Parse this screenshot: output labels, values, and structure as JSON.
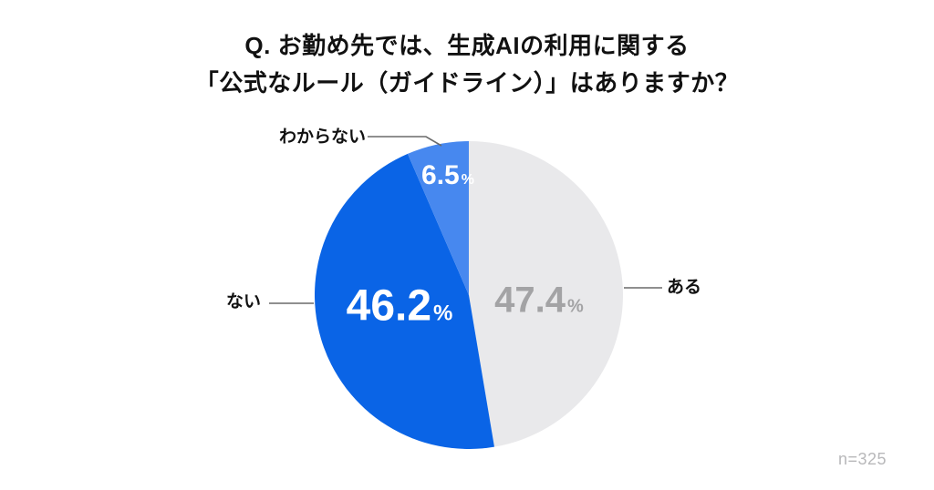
{
  "title": {
    "line1": "Q. お勤め先では、生成AIの利用に関する",
    "line2": "「公式なルール（ガイドライン）」はありますか？"
  },
  "sample_size": "n=325",
  "chart_data": {
    "type": "pie",
    "title": "Q. お勤め先では、生成AIの利用に関する「公式なルール（ガイドライン）」はありますか？",
    "note": "n=325",
    "start_angle_deg": 0,
    "direction": "clockwise",
    "segments": [
      {
        "id": "aru",
        "label": "ある",
        "value": 47.4,
        "display": "47.4",
        "unit": "%",
        "color": "#E9E9EB",
        "value_label_color": "#A3A3A5"
      },
      {
        "id": "nai",
        "label": "ない",
        "value": 46.2,
        "display": "46.2",
        "unit": "%",
        "color": "#0A64E6",
        "value_label_color": "#FFFFFF"
      },
      {
        "id": "wakaranai",
        "label": "わからない",
        "value": 6.5,
        "display": "6.5",
        "unit": "%",
        "color": "#4788EF",
        "value_label_color": "#FFFFFF"
      }
    ]
  }
}
